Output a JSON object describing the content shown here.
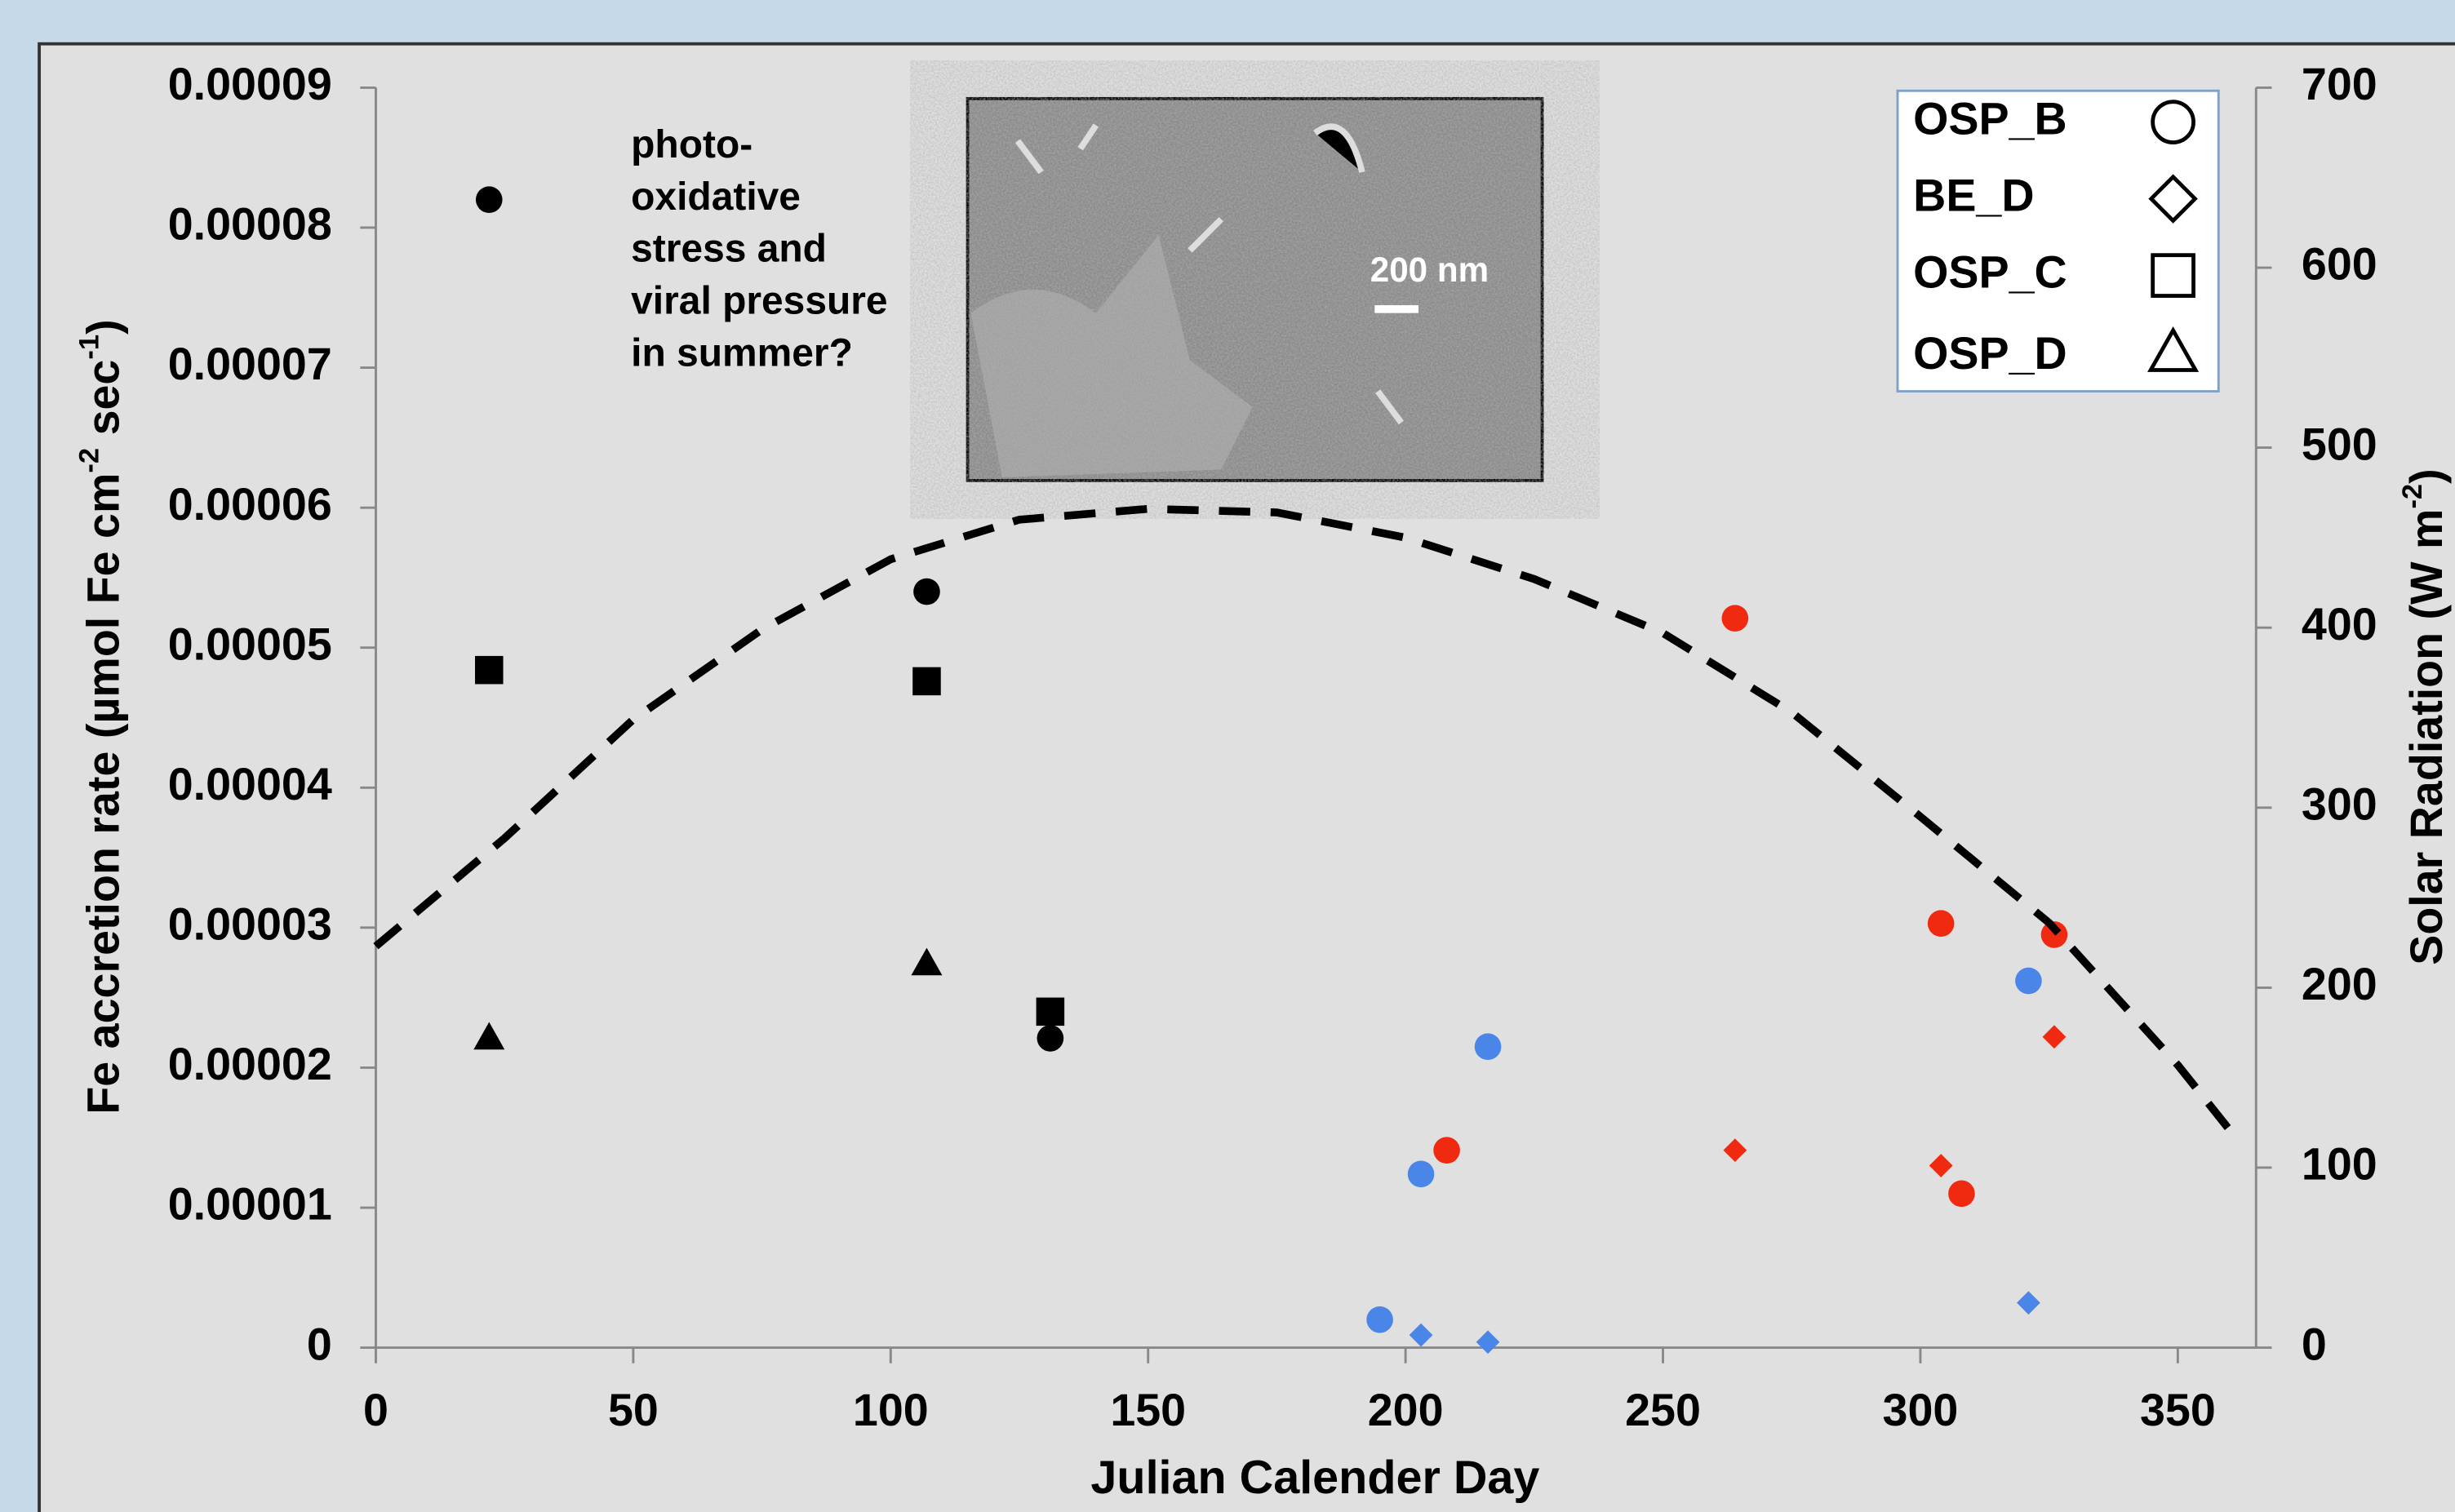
{
  "chart_data": {
    "type": "scatter",
    "xlabel": "Julian Calender Day",
    "ylabel": [
      "Fe accretion rate (µmol Fe cm",
      "-2",
      " sec",
      "-1",
      ")"
    ],
    "y2label": [
      "Solar Radiation (W m",
      "-2",
      ")"
    ],
    "annotation": [
      "photo-",
      "oxidative",
      "stress and",
      "viral pressure",
      "in summer?"
    ],
    "inset_label": "200 nm",
    "xlim": [
      0,
      365
    ],
    "xticks": [
      0,
      50,
      100,
      150,
      200,
      250,
      300,
      350
    ],
    "ylim": [
      0,
      9e-05
    ],
    "yticks": [
      0,
      1e-05,
      2e-05,
      3e-05,
      4e-05,
      5e-05,
      6e-05,
      7e-05,
      8e-05,
      9e-05
    ],
    "y2lim": [
      0,
      700
    ],
    "y2ticks": [
      0,
      100,
      200,
      300,
      400,
      500,
      600,
      700
    ],
    "legend": "top-right",
    "series": [
      {
        "name": "OSP_B",
        "marker": "circle",
        "x": [
          22,
          107,
          131,
          264,
          208,
          304,
          326,
          308,
          195,
          203,
          216,
          321
        ],
        "values": [
          8.2e-05,
          5.4e-05,
          2.21e-05,
          5.21e-05,
          1.41e-05,
          3.03e-05,
          2.95e-05,
          1.1e-05,
          2e-06,
          1.24e-05,
          2.15e-05,
          2.62e-05
        ],
        "colors": [
          "#000000",
          "#000000",
          "#000000",
          "#f02a10",
          "#f02a10",
          "#f02a10",
          "#f02a10",
          "#f02a10",
          "#4a86e8",
          "#4a86e8",
          "#4a86e8",
          "#4a86e8"
        ]
      },
      {
        "name": "BE_D",
        "marker": "diamond",
        "x": [
          264,
          304,
          326,
          203,
          216,
          321
        ],
        "values": [
          1.41e-05,
          1.3e-05,
          2.22e-05,
          9e-07,
          4e-07,
          3.2e-06
        ],
        "colors": [
          "#f02a10",
          "#f02a10",
          "#f02a10",
          "#4a86e8",
          "#4a86e8",
          "#4a86e8"
        ]
      },
      {
        "name": "OSP_C",
        "marker": "square",
        "x": [
          22,
          107,
          131
        ],
        "values": [
          4.84e-05,
          4.76e-05,
          2.4e-05
        ],
        "colors": [
          "#000000",
          "#000000",
          "#000000"
        ]
      },
      {
        "name": "OSP_D",
        "marker": "triangle",
        "x": [
          22,
          107,
          131
        ],
        "values": [
          2.21e-05,
          2.74e-05,
          null
        ],
        "colors": [
          "#000000",
          "#000000",
          "#000000"
        ]
      },
      {
        "type": "line",
        "axis": "y2",
        "style": "dashed",
        "color": "#000000",
        "x": [
          0,
          25,
          50,
          75,
          100,
          125,
          150,
          175,
          200,
          225,
          250,
          275,
          300,
          325,
          350,
          362
        ],
        "values": [
          223,
          283,
          349,
          399,
          438,
          460,
          466,
          464,
          450,
          427,
          397,
          353,
          295,
          236,
          157,
          114
        ]
      }
    ]
  }
}
